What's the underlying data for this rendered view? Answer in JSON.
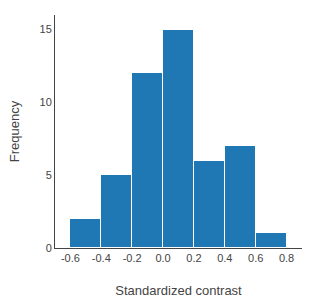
{
  "chart_data": {
    "type": "histogram",
    "bins": [
      -0.6,
      -0.4,
      -0.2,
      0.0,
      0.2,
      0.4,
      0.6,
      0.8
    ],
    "values": [
      2,
      5,
      12,
      15,
      6,
      7,
      1
    ],
    "xlabel": "Standardized contrast",
    "ylabel": "Frequency",
    "xlim": [
      -0.7,
      0.9
    ],
    "ylim": [
      0,
      16
    ],
    "xticks": [
      -0.6,
      -0.4,
      -0.2,
      {
        "value": 0.0,
        "label": "0.0"
      },
      0.2,
      0.4,
      0.6,
      0.8
    ],
    "yticks": [
      0,
      5,
      10,
      15
    ],
    "grid": false
  }
}
